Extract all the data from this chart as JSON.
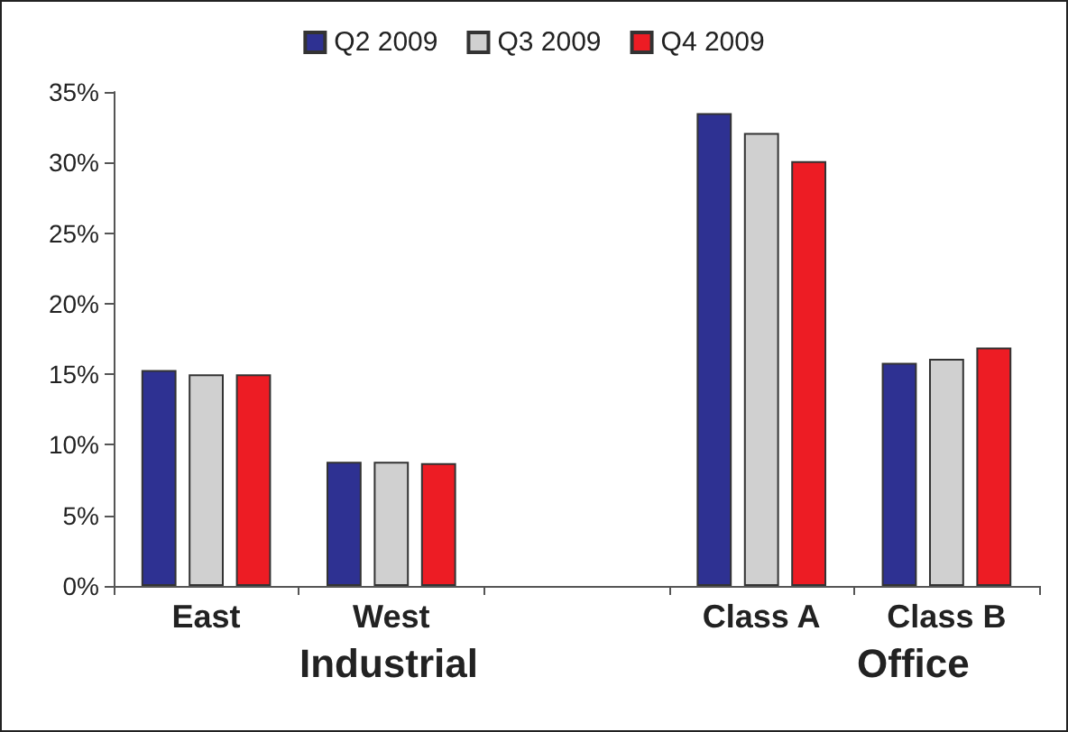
{
  "chart_data": {
    "type": "bar",
    "categories": [
      "East",
      "West",
      null,
      "Class A",
      "Class B"
    ],
    "series": [
      {
        "name": "Q2 2009",
        "color": "#2e3192",
        "values": [
          15.3,
          8.8,
          null,
          33.5,
          15.8
        ]
      },
      {
        "name": "Q3 2009",
        "color": "#d0d0d0",
        "values": [
          15.0,
          8.8,
          null,
          32.1,
          16.1
        ]
      },
      {
        "name": "Q4 2009",
        "color": "#ed1c24",
        "values": [
          15.0,
          8.7,
          null,
          30.1,
          16.9
        ]
      }
    ],
    "ylim": [
      0,
      35
    ],
    "yticks": [
      {
        "value": 0,
        "label": "0%"
      },
      {
        "value": 5,
        "label": "5%"
      },
      {
        "value": 10,
        "label": "10%"
      },
      {
        "value": 15,
        "label": "15%"
      },
      {
        "value": 20,
        "label": "20%"
      },
      {
        "value": 25,
        "label": "25%"
      },
      {
        "value": 30,
        "label": "30%"
      },
      {
        "value": 35,
        "label": "35%"
      }
    ],
    "annotations": [
      "Industrial",
      "Office"
    ],
    "legend": "top",
    "grid": false
  }
}
